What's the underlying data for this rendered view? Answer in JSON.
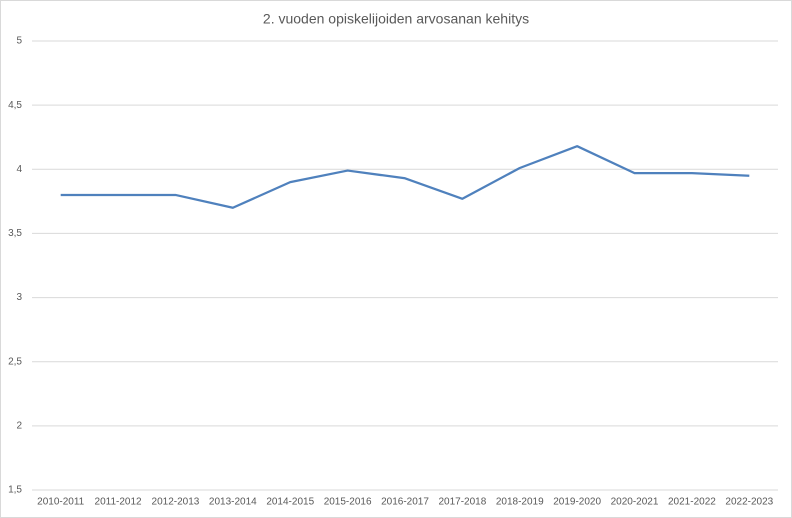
{
  "chart_data": {
    "type": "line",
    "title": "2. vuoden opiskelijoiden arvosanan kehitys",
    "categories": [
      "2010-2011",
      "2011-2012",
      "2012-2013",
      "2013-2014",
      "2014-2015",
      "2015-2016",
      "2016-2017",
      "2017-2018",
      "2018-2019",
      "2019-2020",
      "2020-2021",
      "2021-2022",
      "2022-2023"
    ],
    "series": [
      {
        "color": "#4f81bd",
        "values": [
          3.8,
          3.8,
          3.8,
          3.7,
          3.9,
          3.99,
          3.93,
          3.77,
          4.01,
          4.18,
          3.97,
          3.97,
          3.95
        ]
      }
    ],
    "ylim": [
      1.5,
      5
    ],
    "yticks": [
      {
        "value": 1.5,
        "label": "1,5"
      },
      2,
      {
        "value": 2.5,
        "label": "2,5"
      },
      3,
      {
        "value": 3.5,
        "label": "3,5"
      },
      4,
      {
        "value": 4.5,
        "label": "4,5"
      },
      5
    ],
    "grid": true
  }
}
